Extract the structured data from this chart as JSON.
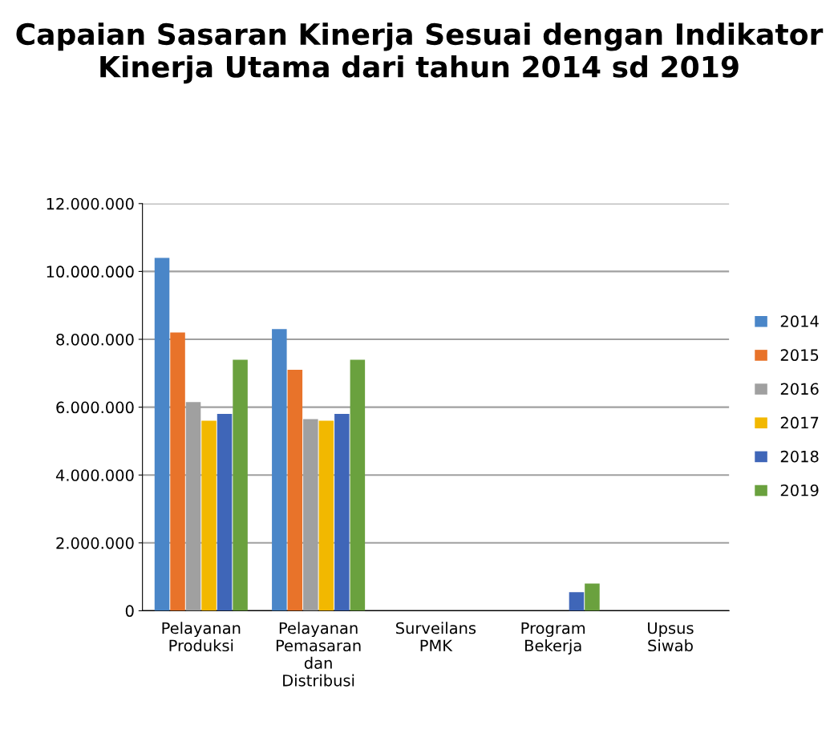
{
  "chart_data": {
    "type": "bar",
    "title": "Capaian Sasaran Kinerja Sesuai dengan Indikator Kinerja Utama dari tahun 2014 sd 2019",
    "categories": [
      "Pelayanan\nProduksi",
      "Pelayanan\nPemasaran\ndan\nDistribusi",
      "Surveilans\nPMK",
      "Program\nBekerja",
      "Upsus\nSiwab"
    ],
    "series": [
      {
        "name": "2014",
        "color": "#4a86c8",
        "values": [
          10400000,
          8300000,
          null,
          null,
          null
        ]
      },
      {
        "name": "2015",
        "color": "#e8732a",
        "values": [
          8200000,
          7100000,
          null,
          null,
          null
        ]
      },
      {
        "name": "2016",
        "color": "#a0a0a0",
        "values": [
          6150000,
          5650000,
          null,
          null,
          null
        ]
      },
      {
        "name": "2017",
        "color": "#f2b800",
        "values": [
          5600000,
          5600000,
          null,
          null,
          null
        ]
      },
      {
        "name": "2018",
        "color": "#3f66b8",
        "values": [
          5800000,
          5800000,
          null,
          550000,
          null
        ]
      },
      {
        "name": "2019",
        "color": "#6aa13e",
        "values": [
          7400000,
          7400000,
          null,
          800000,
          null
        ]
      }
    ],
    "ylim": [
      0,
      12000000
    ],
    "yticks": [
      {
        "value": 0,
        "label": "0"
      },
      {
        "value": 2000000,
        "label": "2.000.000"
      },
      {
        "value": 4000000,
        "label": "4.000.000"
      },
      {
        "value": 6000000,
        "label": "6.000.000"
      },
      {
        "value": 8000000,
        "label": "8.000.000"
      },
      {
        "value": 10000000,
        "label": "10.000.000"
      },
      {
        "value": 12000000,
        "label": "12.000.000"
      }
    ],
    "grid": "y",
    "legend": "right"
  }
}
